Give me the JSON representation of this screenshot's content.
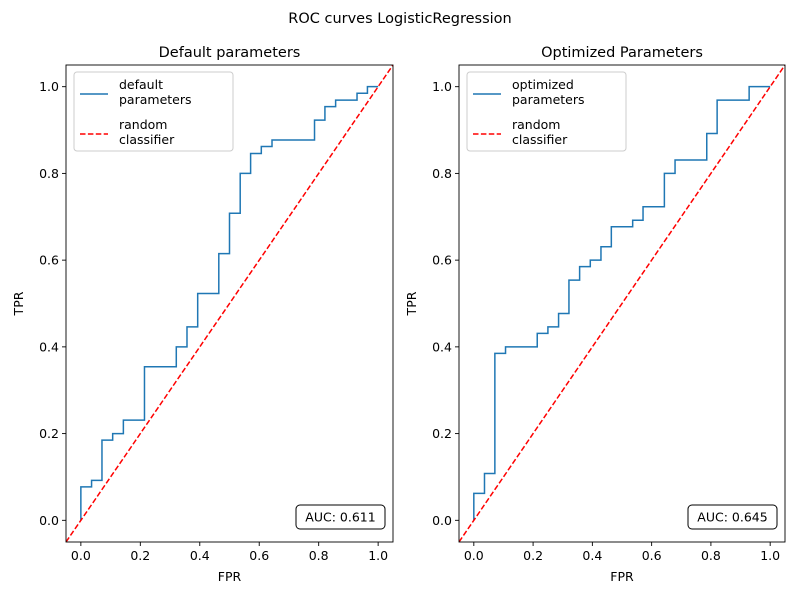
{
  "figure": {
    "title": "ROC curves LogisticRegression"
  },
  "colors": {
    "curve": "#1f77b4",
    "random": "#ff0000",
    "axes": "#000000"
  },
  "chart_data": [
    {
      "type": "line",
      "title": "Default parameters",
      "xlabel": "FPR",
      "ylabel": "TPR",
      "xlim": [
        -0.05,
        1.05
      ],
      "ylim": [
        -0.05,
        1.05
      ],
      "xticks": [
        0.0,
        0.2,
        0.4,
        0.6,
        0.8,
        1.0
      ],
      "xtick_labels": [
        "0.0",
        "0.2",
        "0.4",
        "0.6",
        "0.8",
        "1.0"
      ],
      "yticks": [
        0.0,
        0.2,
        0.4,
        0.6,
        0.8,
        1.0
      ],
      "ytick_labels": [
        "0.0",
        "0.2",
        "0.4",
        "0.6",
        "0.8",
        "1.0"
      ],
      "legend_position": "upper left",
      "grid": false,
      "annotation": "AUC: 0.611",
      "series": [
        {
          "name": "default\nparameters",
          "style": "solid",
          "color": "#1f77b4",
          "step": true,
          "x": [
            0,
            0,
            0.036,
            0.036,
            0.071,
            0.071,
            0.107,
            0.107,
            0.143,
            0.143,
            0.214,
            0.214,
            0.321,
            0.321,
            0.357,
            0.357,
            0.393,
            0.393,
            0.464,
            0.464,
            0.5,
            0.5,
            0.536,
            0.536,
            0.571,
            0.571,
            0.607,
            0.607,
            0.643,
            0.643,
            0.786,
            0.786,
            0.821,
            0.821,
            0.857,
            0.857,
            0.929,
            0.929,
            0.964,
            0.964,
            1.0
          ],
          "y": [
            0,
            0.077,
            0.077,
            0.092,
            0.092,
            0.185,
            0.185,
            0.2,
            0.2,
            0.231,
            0.231,
            0.354,
            0.354,
            0.4,
            0.4,
            0.446,
            0.446,
            0.523,
            0.523,
            0.615,
            0.615,
            0.708,
            0.708,
            0.8,
            0.8,
            0.846,
            0.846,
            0.862,
            0.862,
            0.877,
            0.877,
            0.923,
            0.923,
            0.954,
            0.954,
            0.969,
            0.969,
            0.985,
            0.985,
            1.0,
            1.0
          ]
        },
        {
          "name": "random\nclassifier",
          "style": "dashed",
          "color": "#ff0000",
          "x": [
            -0.05,
            1.05
          ],
          "y": [
            -0.05,
            1.05
          ]
        }
      ]
    },
    {
      "type": "line",
      "title": "Optimized Parameters",
      "xlabel": "FPR",
      "ylabel": "TPR",
      "xlim": [
        -0.05,
        1.05
      ],
      "ylim": [
        -0.05,
        1.05
      ],
      "xticks": [
        0.0,
        0.2,
        0.4,
        0.6,
        0.8,
        1.0
      ],
      "xtick_labels": [
        "0.0",
        "0.2",
        "0.4",
        "0.6",
        "0.8",
        "1.0"
      ],
      "yticks": [
        0.0,
        0.2,
        0.4,
        0.6,
        0.8,
        1.0
      ],
      "ytick_labels": [
        "0.0",
        "0.2",
        "0.4",
        "0.6",
        "0.8",
        "1.0"
      ],
      "legend_position": "upper left",
      "grid": false,
      "annotation": "AUC: 0.645",
      "series": [
        {
          "name": "optimized\nparameters",
          "style": "solid",
          "color": "#1f77b4",
          "step": true,
          "x": [
            0,
            0,
            0.036,
            0.036,
            0.071,
            0.071,
            0.107,
            0.107,
            0.214,
            0.214,
            0.25,
            0.25,
            0.286,
            0.286,
            0.321,
            0.321,
            0.357,
            0.357,
            0.393,
            0.393,
            0.429,
            0.429,
            0.464,
            0.464,
            0.536,
            0.536,
            0.571,
            0.571,
            0.643,
            0.643,
            0.679,
            0.679,
            0.786,
            0.786,
            0.821,
            0.821,
            0.929,
            0.929,
            1.0
          ],
          "y": [
            0,
            0.062,
            0.062,
            0.108,
            0.108,
            0.385,
            0.385,
            0.4,
            0.4,
            0.431,
            0.431,
            0.446,
            0.446,
            0.477,
            0.477,
            0.554,
            0.554,
            0.585,
            0.585,
            0.6,
            0.6,
            0.631,
            0.631,
            0.677,
            0.677,
            0.692,
            0.692,
            0.723,
            0.723,
            0.8,
            0.8,
            0.831,
            0.831,
            0.892,
            0.892,
            0.969,
            0.969,
            1.0,
            1.0
          ]
        },
        {
          "name": "random\nclassifier",
          "style": "dashed",
          "color": "#ff0000",
          "x": [
            -0.05,
            1.05
          ],
          "y": [
            -0.05,
            1.05
          ]
        }
      ]
    }
  ]
}
